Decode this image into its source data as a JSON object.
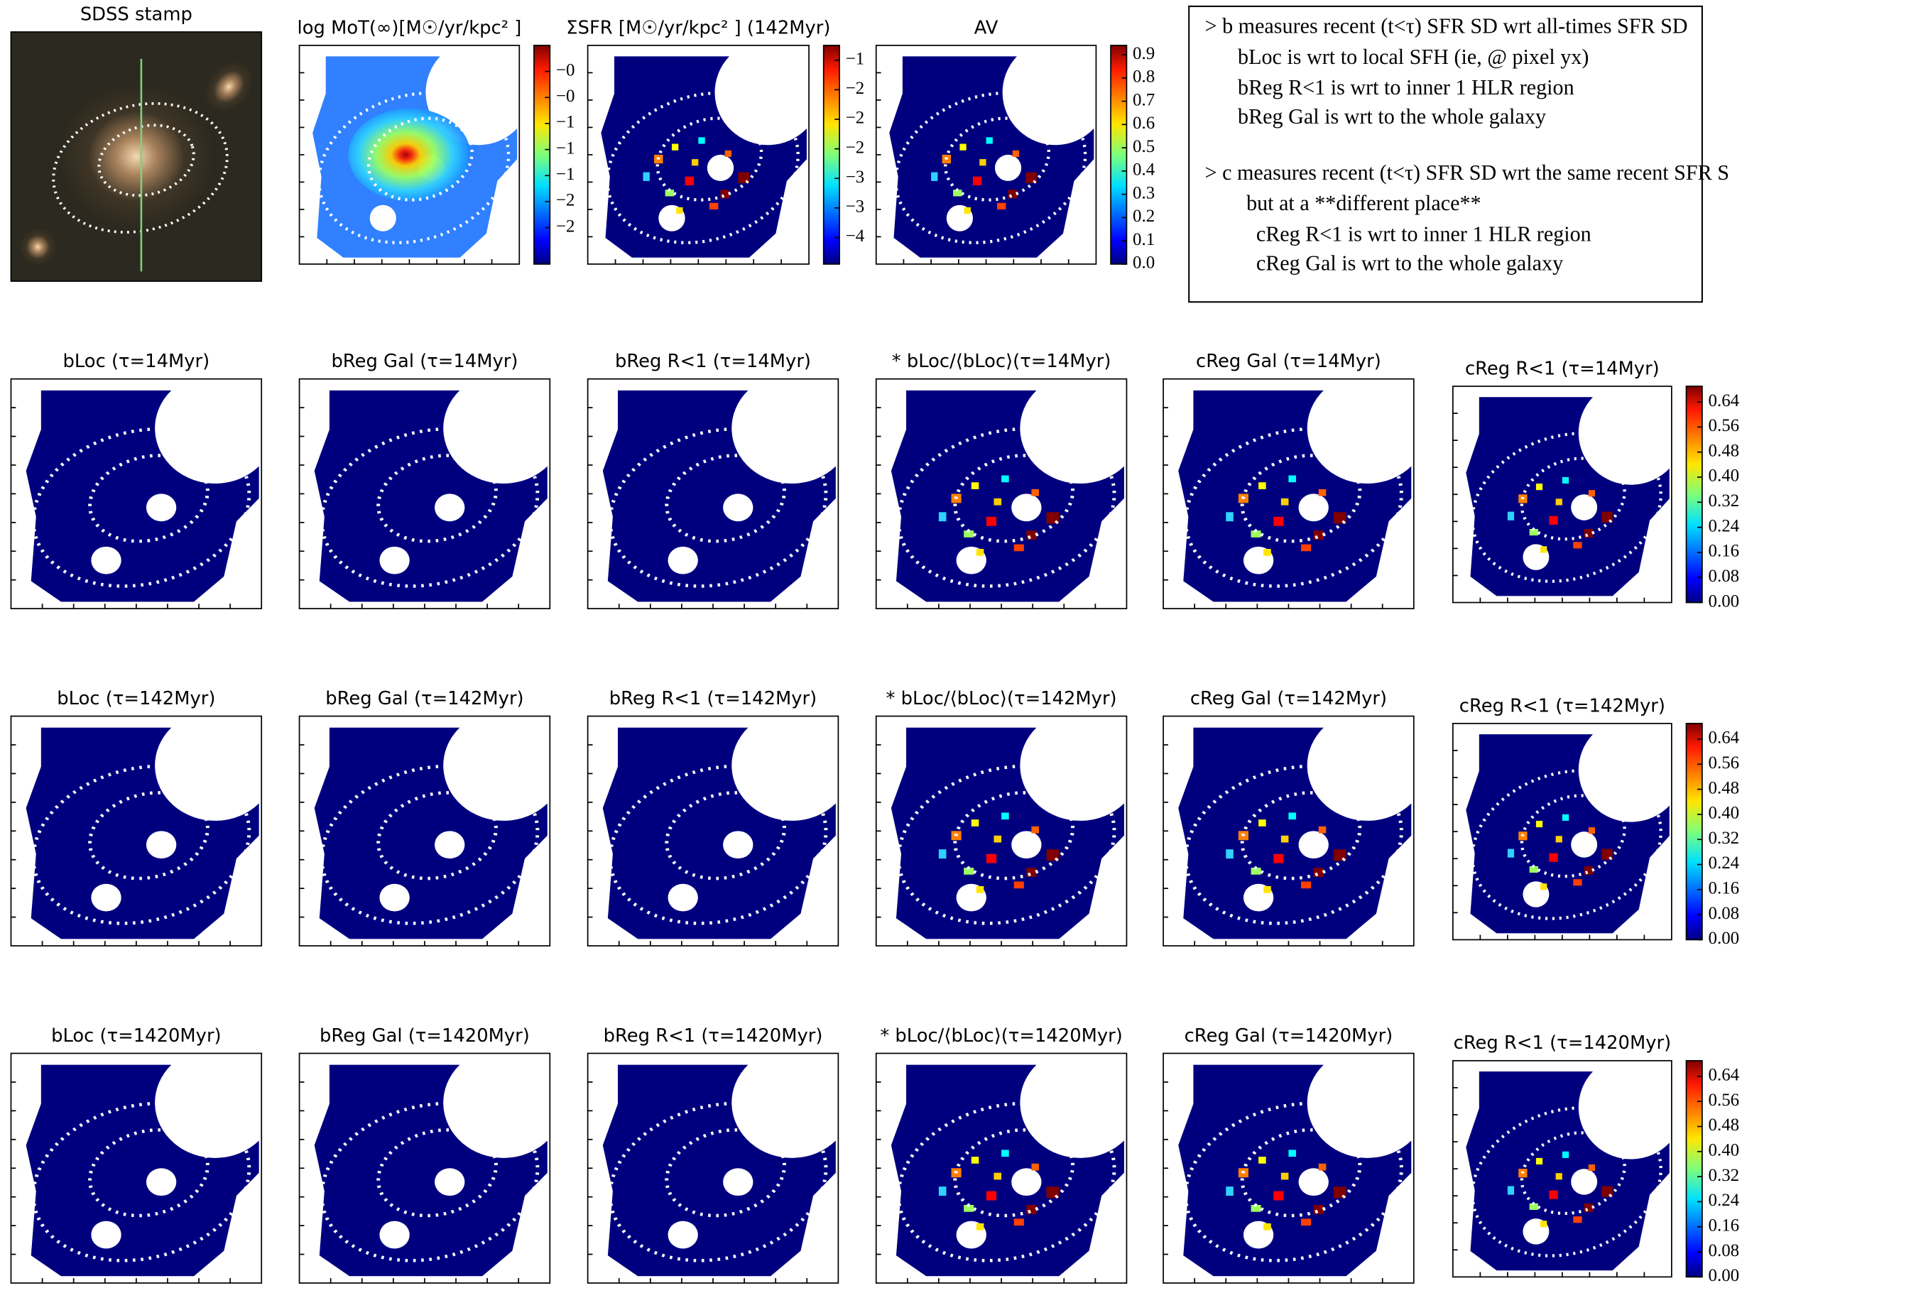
{
  "notes": [
    "> b measures recent (t<τ) SFR SD wrt all-times SFR SD",
    "bLoc is wrt to local SFH (ie, @ pixel yx)",
    "bReg R<1 is wrt to inner 1 HLR region",
    "bReg Gal is wrt to the whole galaxy",
    "> c measures recent (t<τ) SFR SD wrt the same recent SFR S",
    "but at a **different place**",
    "cReg R<1 is wrt to inner 1 HLR region",
    "cReg Gal is wrt to the whole galaxy"
  ],
  "chart_data": [
    {
      "type": "image",
      "title": "SDSS stamp"
    },
    {
      "type": "heatmap",
      "title": "log MoT(∞)[M☉/yr/kpc² ]",
      "zlim": [
        -2.1,
        0
      ],
      "zticks": [
        {
          "value": -0.25,
          "label": "−0"
        },
        {
          "value": -0.5,
          "label": "−0"
        },
        {
          "value": -0.75,
          "label": "−1"
        },
        {
          "value": -1,
          "label": "−1"
        },
        {
          "value": -1.25,
          "label": "−1"
        },
        {
          "value": -1.5,
          "label": "−2"
        },
        {
          "value": -1.75,
          "label": "−2"
        }
      ]
    },
    {
      "type": "heatmap",
      "title": "ΣSFR [M☉/yr/kpc² ] (142Myr)",
      "zlim": [
        -4.45,
        -0.75
      ],
      "zticks": [
        {
          "value": -1,
          "label": "−1"
        },
        {
          "value": -1.5,
          "label": "−2"
        },
        {
          "value": -2,
          "label": "−2"
        },
        {
          "value": -2.5,
          "label": "−2"
        },
        {
          "value": -3,
          "label": "−3"
        },
        {
          "value": -3.5,
          "label": "−3"
        },
        {
          "value": -4,
          "label": "−4"
        }
      ]
    },
    {
      "type": "heatmap",
      "title": "AV",
      "zlim": [
        0,
        0.94
      ],
      "zticks": [
        {
          "value": 0,
          "label": "0.0"
        },
        0.1,
        0.2,
        0.3,
        0.4,
        0.5,
        0.6,
        0.7,
        0.8,
        0.9
      ]
    },
    {
      "type": "heatmap",
      "title": "bLoc (τ=14Myr)"
    },
    {
      "type": "heatmap",
      "title": "bReg Gal (τ=14Myr)"
    },
    {
      "type": "heatmap",
      "title": "bReg R<1 (τ=14Myr)"
    },
    {
      "type": "heatmap",
      "title": "* bLoc/⟨bLoc⟩(τ=14Myr)"
    },
    {
      "type": "heatmap",
      "title": "cReg Gal (τ=14Myr)"
    },
    {
      "type": "heatmap",
      "title": "cReg R<1 (τ=14Myr)",
      "zlim": [
        0,
        0.69
      ],
      "zticks": [
        {
          "value": 0,
          "label": "0.00"
        },
        0.08,
        0.16,
        0.24,
        0.32,
        {
          "value": 0.4,
          "label": "0.40"
        },
        0.48,
        0.56,
        0.64
      ]
    },
    {
      "type": "heatmap",
      "title": "bLoc (τ=142Myr)"
    },
    {
      "type": "heatmap",
      "title": "bReg Gal (τ=142Myr)"
    },
    {
      "type": "heatmap",
      "title": "bReg R<1 (τ=142Myr)"
    },
    {
      "type": "heatmap",
      "title": "* bLoc/⟨bLoc⟩(τ=142Myr)"
    },
    {
      "type": "heatmap",
      "title": "cReg Gal (τ=142Myr)"
    },
    {
      "type": "heatmap",
      "title": "cReg R<1 (τ=142Myr)",
      "zlim": [
        0,
        0.69
      ],
      "zticks": [
        {
          "value": 0,
          "label": "0.00"
        },
        0.08,
        0.16,
        0.24,
        0.32,
        {
          "value": 0.4,
          "label": "0.40"
        },
        0.48,
        0.56,
        0.64
      ]
    },
    {
      "type": "heatmap",
      "title": "bLoc (τ=1420Myr)"
    },
    {
      "type": "heatmap",
      "title": "bReg Gal (τ=1420Myr)"
    },
    {
      "type": "heatmap",
      "title": "bReg R<1 (τ=1420Myr)"
    },
    {
      "type": "heatmap",
      "title": "* bLoc/⟨bLoc⟩(τ=1420Myr)"
    },
    {
      "type": "heatmap",
      "title": "cReg Gal (τ=1420Myr)"
    },
    {
      "type": "heatmap",
      "title": "cReg R<1 (τ=1420Myr)",
      "zlim": [
        0,
        0.69
      ],
      "zticks": [
        {
          "value": 0,
          "label": "0.00"
        },
        0.08,
        0.16,
        0.24,
        0.32,
        {
          "value": 0.4,
          "label": "0.40"
        },
        0.48,
        0.56,
        0.64
      ]
    }
  ]
}
